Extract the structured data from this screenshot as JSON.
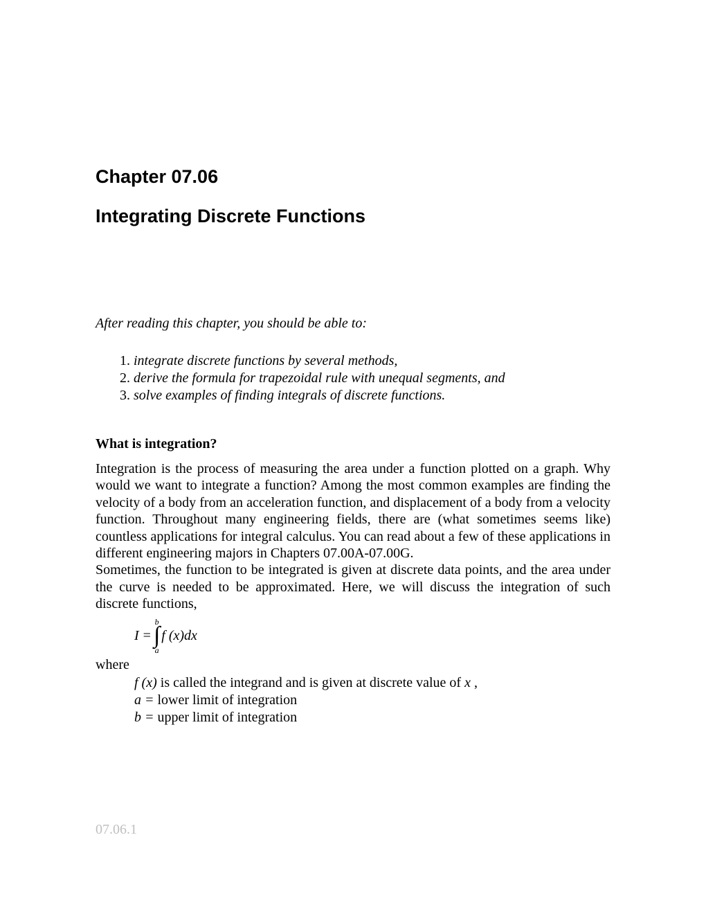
{
  "chapter": {
    "number_label": "Chapter 07.06",
    "title": "Integrating Discrete Functions"
  },
  "intro": "After reading this chapter, you should be able to:",
  "objectives": [
    "integrate discrete functions by several methods,",
    "derive the formula for trapezoidal rule with unequal segments, and",
    "solve examples of finding integrals of discrete functions."
  ],
  "section1": {
    "heading": "What is integration?",
    "paragraph1": "Integration is the process of measuring the area under a function plotted on a graph.  Why would we want to integrate a function?  Among the most common examples are finding the velocity of a body from an acceleration function, and displacement of a body from a velocity function.   Throughout many engineering fields, there are (what sometimes seems like) countless applications for integral calculus.  You can read about a few of these applications in different engineering majors in Chapters 07.00A-07.00G.",
    "paragraph2": "Sometimes, the function to be integrated is given at discrete data points, and the area under the curve is needed to be approximated. Here, we will discuss the integration of such discrete functions,",
    "equation": {
      "lhs": "I",
      "equals": "=",
      "upper_limit": "b",
      "lower_limit": "a",
      "integrand": "f (x)dx"
    },
    "where": "where",
    "definitions": {
      "fx_prefix": "f (x)",
      "fx_suffix_1": "  is called the integrand and is given at discrete value of ",
      "fx_x": "x",
      "fx_comma": " ,",
      "a_prefix": "a =",
      "a_text": "  lower limit of integration",
      "b_prefix": "b =",
      "b_text": "  upper limit of integration"
    }
  },
  "page_number": "07.06.1",
  "colors": {
    "text": "#000000",
    "page_number": "#bfbfbf",
    "background": "#ffffff"
  },
  "typography": {
    "heading_font": "Arial",
    "body_font": "Times New Roman",
    "heading_size_pt": 20,
    "body_size_pt": 15,
    "chapter_size_pt": 20
  }
}
